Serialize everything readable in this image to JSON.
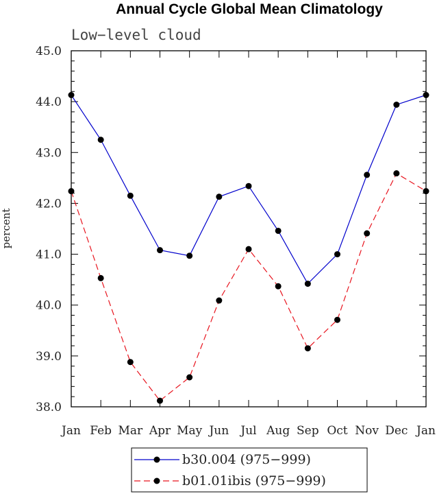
{
  "chart_data": {
    "type": "line",
    "title": "Annual Cycle Global Mean Climatology",
    "subtitle": "Low−level cloud",
    "xlabel": "",
    "ylabel": "percent",
    "categories": [
      "Jan",
      "Feb",
      "Mar",
      "Apr",
      "May",
      "Jun",
      "Jul",
      "Aug",
      "Sep",
      "Oct",
      "Nov",
      "Dec",
      "Jan"
    ],
    "ylim": [
      38.0,
      45.0
    ],
    "yticks": [
      "38.0",
      "39.0",
      "40.0",
      "41.0",
      "42.0",
      "43.0",
      "44.0",
      "45.0"
    ],
    "grid": false,
    "legend_position": "bottom-center",
    "series": [
      {
        "name": "b30.004 (975−999)",
        "color": "#0000cc",
        "dash": "solid",
        "values": [
          44.13,
          43.25,
          42.15,
          41.08,
          40.97,
          42.13,
          42.34,
          41.46,
          40.42,
          41.0,
          42.56,
          43.94,
          44.13
        ]
      },
      {
        "name": "b01.01ibis (975−999)",
        "color": "#e8141e",
        "dash": "dashed",
        "values": [
          42.24,
          40.53,
          38.88,
          38.12,
          38.58,
          40.09,
          41.1,
          40.37,
          39.15,
          39.71,
          41.41,
          42.59,
          42.24
        ]
      }
    ]
  }
}
